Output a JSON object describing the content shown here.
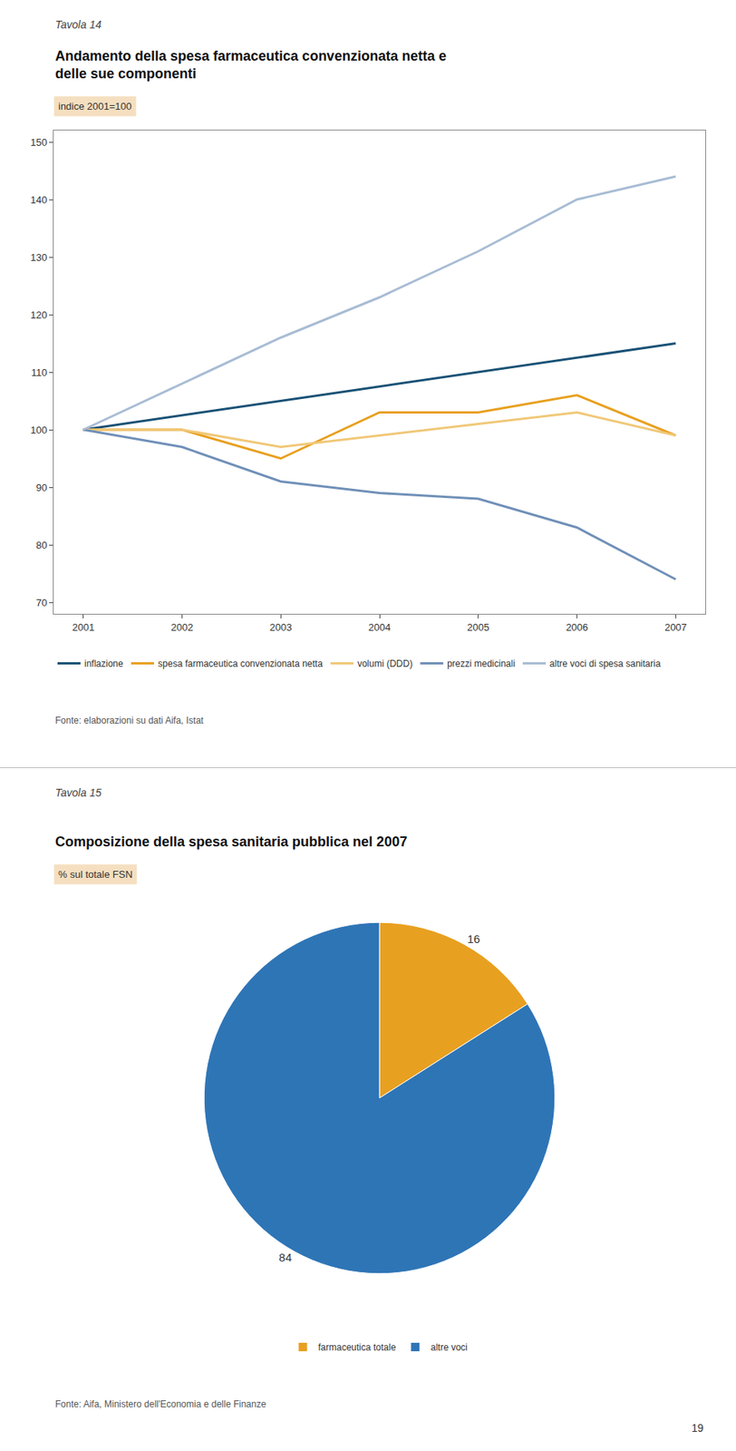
{
  "chart_data": [
    {
      "type": "line",
      "title": "Andamento della spesa farmaceutica convenzionata netta e\ndelle sue componenti",
      "subtitle": "indice 2001=100",
      "annotations": [
        "Tavola 14",
        "Fonte: elaborazioni su dati Aifa, Istat"
      ],
      "x": [
        2001,
        2002,
        2003,
        2004,
        2005,
        2006,
        2007
      ],
      "xlim": [
        2000.7,
        2007.3
      ],
      "xticks": [
        2001,
        2002,
        2003,
        2004,
        2005,
        2006,
        2007
      ],
      "ylim": [
        68,
        152
      ],
      "yticks": [
        70,
        80,
        90,
        100,
        110,
        120,
        130,
        140,
        150
      ],
      "grid": false,
      "legend": "bottom",
      "series": [
        {
          "name": "inflazione",
          "color": "#1a5276",
          "values": [
            100,
            102.5,
            105,
            107.5,
            110,
            112.5,
            115
          ]
        },
        {
          "name": "spesa farmaceutica convenzionata netta",
          "color": "#e8a020",
          "values": [
            100,
            100,
            95,
            103,
            103,
            106,
            99
          ]
        },
        {
          "name": "volumi (DDD)",
          "color": "#f0c878",
          "values": [
            100,
            100,
            97,
            99,
            101,
            103,
            99
          ]
        },
        {
          "name": "prezzi medicinali",
          "color": "#7090b8",
          "values": [
            100,
            97,
            91,
            89,
            88,
            83,
            74
          ]
        },
        {
          "name": "altre voci di spesa sanitaria",
          "color": "#a8bcd4",
          "values": [
            100,
            108,
            116,
            123,
            131,
            140,
            144
          ]
        }
      ]
    },
    {
      "type": "pie",
      "title": "Composizione della spesa sanitaria pubblica nel 2007",
      "subtitle": "% sul totale FSN",
      "annotations": [
        "Tavola 15",
        "Fonte: Aifa, Ministero dell'Economia e delle Finanze",
        "19"
      ],
      "categories": [
        "farmaceutica totale",
        "altre voci"
      ],
      "values": [
        16,
        84
      ],
      "colors": [
        "#e8a020",
        "#2e75b6"
      ],
      "data_labels": true,
      "legend": "bottom"
    }
  ]
}
